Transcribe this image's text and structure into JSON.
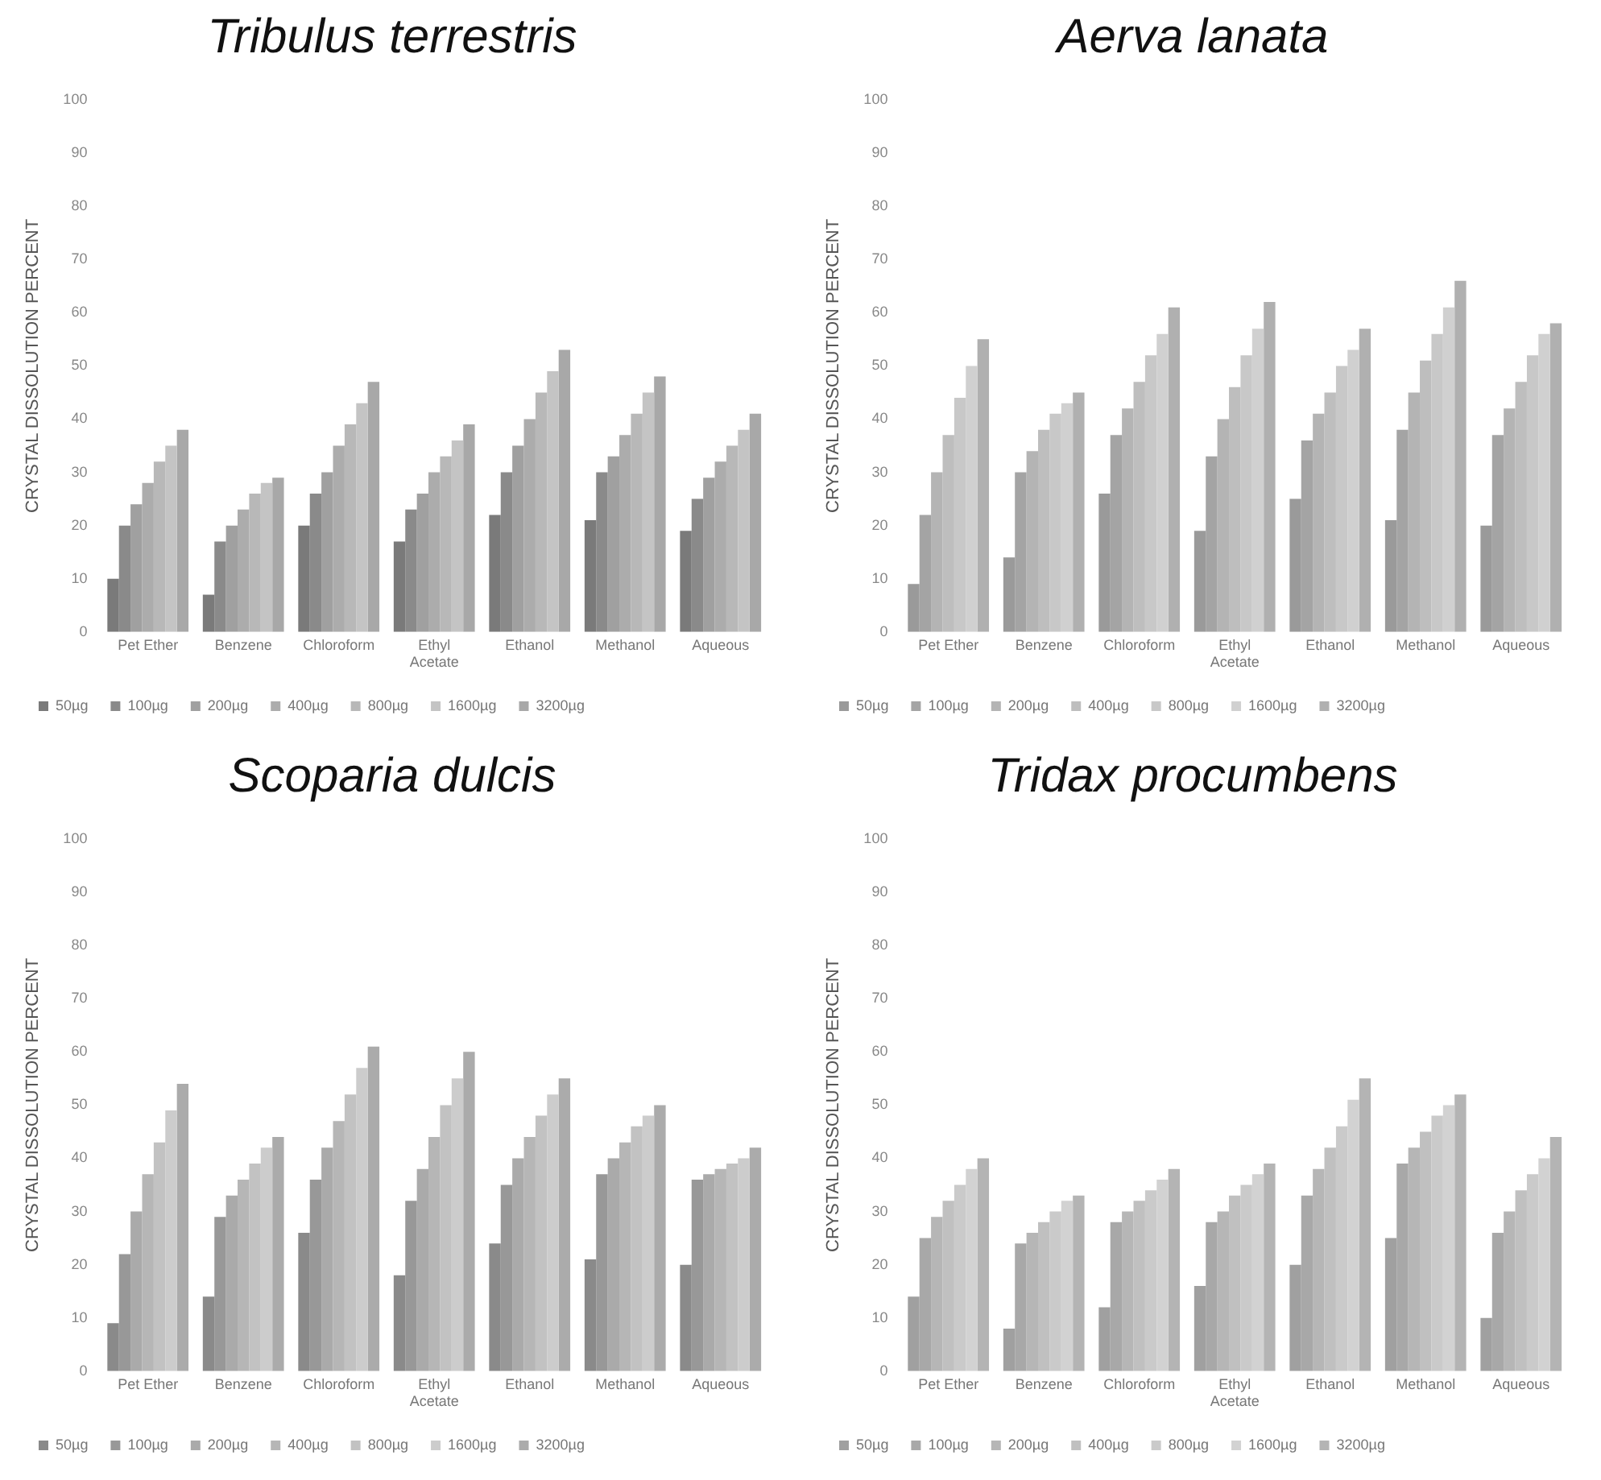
{
  "chart_data": [
    {
      "type": "bar",
      "title": "Tribulus terrestris",
      "ylabel": "CRYSTAL DISSOLUTION PERCENT",
      "categories": [
        "Pet Ether",
        "Benzene",
        "Chloroform",
        "Ethyl Acetate",
        "Ethanol",
        "Methanol",
        "Aqueous"
      ],
      "ylim": [
        0,
        100
      ],
      "yticks": [
        0,
        10,
        20,
        30,
        40,
        50,
        60,
        70,
        80,
        90,
        100
      ],
      "grid": false,
      "legend": "bottom",
      "series": [
        {
          "name": "50µg",
          "color": "#7a7a7a",
          "values": [
            10,
            7,
            20,
            17,
            22,
            21,
            19
          ]
        },
        {
          "name": "100µg",
          "color": "#8a8a8a",
          "values": [
            20,
            17,
            26,
            23,
            30,
            30,
            25
          ]
        },
        {
          "name": "200µg",
          "color": "#a0a0a0",
          "values": [
            24,
            20,
            30,
            26,
            35,
            33,
            29
          ]
        },
        {
          "name": "400µg",
          "color": "#acacac",
          "values": [
            28,
            23,
            35,
            30,
            40,
            37,
            32
          ]
        },
        {
          "name": "800µg",
          "color": "#b8b8b8",
          "values": [
            32,
            26,
            39,
            33,
            45,
            41,
            35
          ]
        },
        {
          "name": "1600µg",
          "color": "#c4c4c4",
          "values": [
            35,
            28,
            43,
            36,
            49,
            45,
            38
          ]
        },
        {
          "name": "3200µg",
          "color": "#a8a8a8",
          "values": [
            38,
            29,
            47,
            39,
            53,
            48,
            41
          ]
        }
      ]
    },
    {
      "type": "bar",
      "title": "Aerva lanata",
      "ylabel": "CRYSTAL DISSOLUTION PERCENT",
      "categories": [
        "Pet Ether",
        "Benzene",
        "Chloroform",
        "Ethyl Acetate",
        "Ethanol",
        "Methanol",
        "Aqueous"
      ],
      "ylim": [
        0,
        100
      ],
      "yticks": [
        0,
        10,
        20,
        30,
        40,
        50,
        60,
        70,
        80,
        90,
        100
      ],
      "grid": false,
      "legend": "bottom",
      "series": [
        {
          "name": "50µg",
          "color": "#9a9a9a",
          "values": [
            9,
            14,
            26,
            19,
            25,
            21,
            20
          ]
        },
        {
          "name": "100µg",
          "color": "#a4a4a4",
          "values": [
            22,
            30,
            37,
            33,
            36,
            38,
            37
          ]
        },
        {
          "name": "200µg",
          "color": "#b4b4b4",
          "values": [
            30,
            34,
            42,
            40,
            41,
            45,
            42
          ]
        },
        {
          "name": "400µg",
          "color": "#bebebe",
          "values": [
            37,
            38,
            47,
            46,
            45,
            51,
            47
          ]
        },
        {
          "name": "800µg",
          "color": "#c8c8c8",
          "values": [
            44,
            41,
            52,
            52,
            50,
            56,
            52
          ]
        },
        {
          "name": "1600µg",
          "color": "#d0d0d0",
          "values": [
            50,
            43,
            56,
            57,
            53,
            61,
            56
          ]
        },
        {
          "name": "3200µg",
          "color": "#b0b0b0",
          "values": [
            55,
            45,
            61,
            62,
            57,
            66,
            58
          ]
        }
      ]
    },
    {
      "type": "bar",
      "title": "Scoparia dulcis",
      "ylabel": "CRYSTAL DISSOLUTION PERCENT",
      "categories": [
        "Pet Ether",
        "Benzene",
        "Chloroform",
        "Ethyl Acetate",
        "Ethanol",
        "Methanol",
        "Aqueous"
      ],
      "ylim": [
        0,
        100
      ],
      "yticks": [
        0,
        10,
        20,
        30,
        40,
        50,
        60,
        70,
        80,
        90,
        100
      ],
      "grid": false,
      "legend": "bottom",
      "series": [
        {
          "name": "50µg",
          "color": "#8a8a8a",
          "values": [
            9,
            14,
            26,
            18,
            24,
            21,
            20
          ]
        },
        {
          "name": "100µg",
          "color": "#989898",
          "values": [
            22,
            29,
            36,
            32,
            35,
            37,
            36
          ]
        },
        {
          "name": "200µg",
          "color": "#aaaaaa",
          "values": [
            30,
            33,
            42,
            38,
            40,
            40,
            37
          ]
        },
        {
          "name": "400µg",
          "color": "#b6b6b6",
          "values": [
            37,
            36,
            47,
            44,
            44,
            43,
            38
          ]
        },
        {
          "name": "800µg",
          "color": "#c2c2c2",
          "values": [
            43,
            39,
            52,
            50,
            48,
            46,
            39
          ]
        },
        {
          "name": "1600µg",
          "color": "#cccccc",
          "values": [
            49,
            42,
            57,
            55,
            52,
            48,
            40
          ]
        },
        {
          "name": "3200µg",
          "color": "#ababab",
          "values": [
            54,
            44,
            61,
            60,
            55,
            50,
            42
          ]
        }
      ]
    },
    {
      "type": "bar",
      "title": "Tridax procumbens",
      "ylabel": "CRYSTAL DISSOLUTION PERCENT",
      "categories": [
        "Pet Ether",
        "Benzene",
        "Chloroform",
        "Ethyl Acetate",
        "Ethanol",
        "Methanol",
        "Aqueous"
      ],
      "ylim": [
        0,
        100
      ],
      "yticks": [
        0,
        10,
        20,
        30,
        40,
        50,
        60,
        70,
        80,
        90,
        100
      ],
      "grid": false,
      "legend": "bottom",
      "series": [
        {
          "name": "50µg",
          "color": "#a0a0a0",
          "values": [
            14,
            8,
            12,
            16,
            20,
            25,
            10
          ]
        },
        {
          "name": "100µg",
          "color": "#a8a8a8",
          "values": [
            25,
            24,
            28,
            28,
            33,
            39,
            26
          ]
        },
        {
          "name": "200µg",
          "color": "#b6b6b6",
          "values": [
            29,
            26,
            30,
            30,
            38,
            42,
            30
          ]
        },
        {
          "name": "400µg",
          "color": "#c0c0c0",
          "values": [
            32,
            28,
            32,
            33,
            42,
            45,
            34
          ]
        },
        {
          "name": "800µg",
          "color": "#cacaca",
          "values": [
            35,
            30,
            34,
            35,
            46,
            48,
            37
          ]
        },
        {
          "name": "1600µg",
          "color": "#d2d2d2",
          "values": [
            38,
            32,
            36,
            37,
            51,
            50,
            40
          ]
        },
        {
          "name": "3200µg",
          "color": "#b4b4b4",
          "values": [
            40,
            33,
            38,
            39,
            55,
            52,
            44
          ]
        }
      ]
    }
  ]
}
